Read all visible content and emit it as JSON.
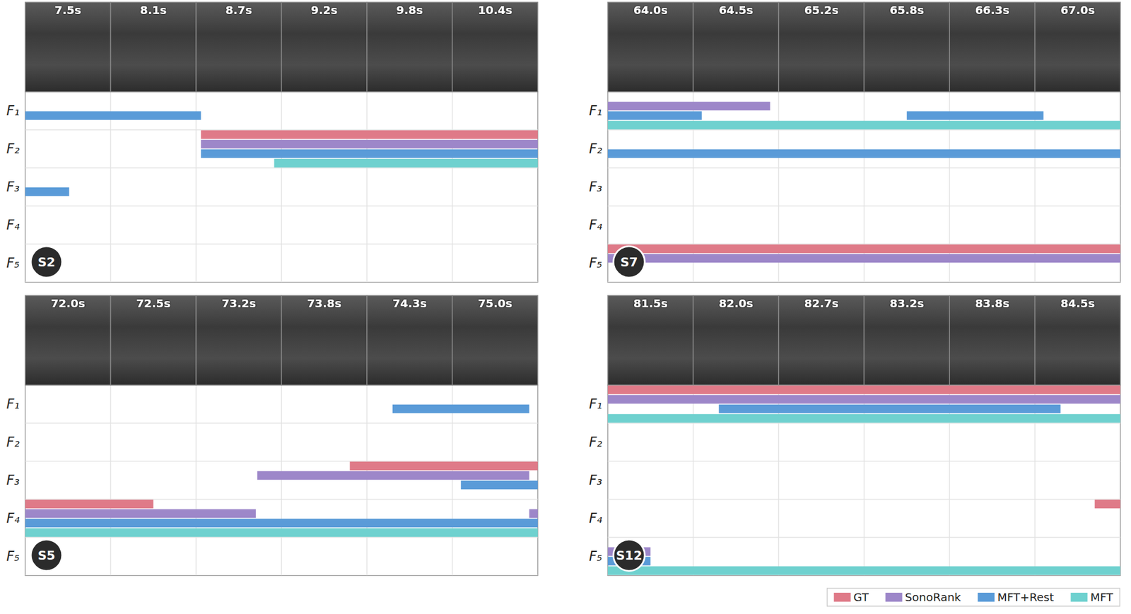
{
  "chart_data": [
    {
      "type": "timeline",
      "title": "S2",
      "frames": [
        "7.5s",
        "8.1s",
        "8.7s",
        "9.2s",
        "9.8s",
        "10.4s"
      ],
      "xlim": [
        7.5,
        11.0
      ],
      "categories": [
        "F₁",
        "F₂",
        "F₃",
        "F₄",
        "F₅"
      ],
      "grid": true,
      "tick_labels": "y",
      "series": [
        {
          "name": "GT",
          "color": "#df7a88",
          "values": [
            {
              "row": "F₂",
              "start": 8.7,
              "end": 11.0
            }
          ]
        },
        {
          "name": "SonoRank",
          "color": "#9d87c9",
          "values": [
            {
              "row": "F₂",
              "start": 8.7,
              "end": 11.0
            }
          ]
        },
        {
          "name": "MFT+Rest",
          "color": "#5a9bd8",
          "values": [
            {
              "row": "F₁",
              "start": 7.5,
              "end": 8.7
            },
            {
              "row": "F₂",
              "start": 8.7,
              "end": 11.0
            },
            {
              "row": "F₃",
              "start": 7.5,
              "end": 7.8
            }
          ]
        },
        {
          "name": "MFT",
          "color": "#6fd1cf",
          "values": [
            {
              "row": "F₂",
              "start": 9.2,
              "end": 11.0
            }
          ]
        }
      ]
    },
    {
      "type": "timeline",
      "title": "S7",
      "frames": [
        "64.0s",
        "64.5s",
        "65.2s",
        "65.8s",
        "66.3s",
        "67.0s"
      ],
      "xlim": [
        64.0,
        67.6
      ],
      "categories": [
        "F₁",
        "F₂",
        "F₃",
        "F₄",
        "F₅"
      ],
      "grid": true,
      "tick_labels": "y",
      "series": [
        {
          "name": "GT",
          "color": "#df7a88",
          "values": [
            {
              "row": "F₅",
              "start": 64.0,
              "end": 67.6
            }
          ]
        },
        {
          "name": "SonoRank",
          "color": "#9d87c9",
          "values": [
            {
              "row": "F₁",
              "start": 64.0,
              "end": 65.14
            },
            {
              "row": "F₅",
              "start": 64.0,
              "end": 67.6
            }
          ]
        },
        {
          "name": "MFT+Rest",
          "color": "#5a9bd8",
          "values": [
            {
              "row": "F₁",
              "start": 64.0,
              "end": 64.66
            },
            {
              "row": "F₁",
              "start": 66.1,
              "end": 67.06
            },
            {
              "row": "F₂",
              "start": 64.0,
              "end": 67.6
            }
          ]
        },
        {
          "name": "MFT",
          "color": "#6fd1cf",
          "values": [
            {
              "row": "F₁",
              "start": 64.0,
              "end": 67.6
            }
          ]
        }
      ]
    },
    {
      "type": "timeline",
      "title": "S5",
      "frames": [
        "72.0s",
        "72.5s",
        "73.2s",
        "73.8s",
        "74.3s",
        "75.0s"
      ],
      "xlim": [
        72.0,
        75.6
      ],
      "categories": [
        "F₁",
        "F₂",
        "F₃",
        "F₄",
        "F₅"
      ],
      "grid": true,
      "tick_labels": "y",
      "series": [
        {
          "name": "GT",
          "color": "#df7a88",
          "values": [
            {
              "row": "F₃",
              "start": 74.28,
              "end": 75.6
            },
            {
              "row": "F₄",
              "start": 72.0,
              "end": 72.9
            }
          ]
        },
        {
          "name": "SonoRank",
          "color": "#9d87c9",
          "values": [
            {
              "row": "F₃",
              "start": 73.63,
              "end": 75.54
            },
            {
              "row": "F₄",
              "start": 72.0,
              "end": 73.62
            },
            {
              "row": "F₄",
              "start": 75.54,
              "end": 75.6
            }
          ]
        },
        {
          "name": "MFT+Rest",
          "color": "#5a9bd8",
          "values": [
            {
              "row": "F₁",
              "start": 74.58,
              "end": 75.54
            },
            {
              "row": "F₃",
              "start": 75.06,
              "end": 75.6
            },
            {
              "row": "F₄",
              "start": 72.0,
              "end": 75.6
            }
          ]
        },
        {
          "name": "MFT",
          "color": "#6fd1cf",
          "values": [
            {
              "row": "F₄",
              "start": 72.0,
              "end": 75.6
            }
          ]
        }
      ]
    },
    {
      "type": "timeline",
      "title": "S12",
      "frames": [
        "81.5s",
        "82.0s",
        "82.7s",
        "83.2s",
        "83.8s",
        "84.5s"
      ],
      "xlim": [
        81.5,
        85.1
      ],
      "categories": [
        "F₁",
        "F₂",
        "F₃",
        "F₄",
        "F₅"
      ],
      "grid": true,
      "tick_labels": "y",
      "legend": "bottom",
      "series": [
        {
          "name": "GT",
          "color": "#df7a88",
          "values": [
            {
              "row": "F₁",
              "start": 81.5,
              "end": 85.1
            },
            {
              "row": "F₄",
              "start": 84.92,
              "end": 85.1
            }
          ]
        },
        {
          "name": "SonoRank",
          "color": "#9d87c9",
          "values": [
            {
              "row": "F₁",
              "start": 81.5,
              "end": 85.1
            },
            {
              "row": "F₅",
              "start": 81.5,
              "end": 81.8
            }
          ]
        },
        {
          "name": "MFT+Rest",
          "color": "#5a9bd8",
          "values": [
            {
              "row": "F₁",
              "start": 82.28,
              "end": 84.68
            },
            {
              "row": "F₅",
              "start": 81.5,
              "end": 81.8
            }
          ]
        },
        {
          "name": "MFT",
          "color": "#6fd1cf",
          "values": [
            {
              "row": "F₁",
              "start": 81.5,
              "end": 85.1
            },
            {
              "row": "F₅",
              "start": 81.5,
              "end": 85.1
            }
          ]
        }
      ]
    }
  ]
}
